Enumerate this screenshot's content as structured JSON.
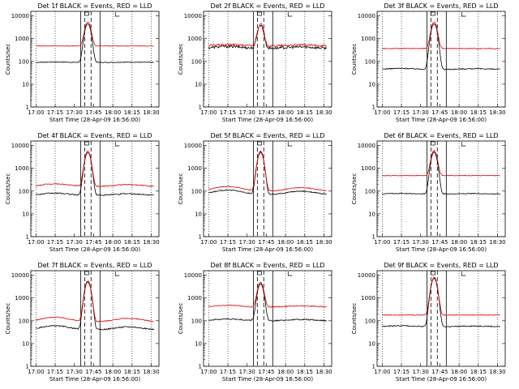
{
  "chart_data": [
    {
      "type": "line",
      "title": "Det 1f BLACK = Events, RED = LLD",
      "red_base": 480,
      "black_base": 90,
      "red_hump": 1.0,
      "black_hump": 1.05,
      "peak": 5000,
      "noise": 0.04
    },
    {
      "type": "line",
      "title": "Det 2f BLACK = Events, RED = LLD",
      "red_base": 480,
      "black_base": 380,
      "red_hump": 1.15,
      "black_hump": 1.2,
      "peak": 4000,
      "noise": 0.12
    },
    {
      "type": "line",
      "title": "Det 3f BLACK = Events, RED = LLD",
      "red_base": 370,
      "black_base": 45,
      "red_hump": 1.0,
      "black_hump": 1.1,
      "peak": 5000,
      "noise": 0.05
    },
    {
      "type": "line",
      "title": "Det 4f BLACK = Events, RED = LLD",
      "red_base": 160,
      "black_base": 65,
      "red_hump": 1.3,
      "black_hump": 1.25,
      "peak": 5500,
      "noise": 0.06
    },
    {
      "type": "line",
      "title": "Det 5f BLACK = Events, RED = LLD",
      "red_base": 100,
      "black_base": 70,
      "red_hump": 1.6,
      "black_hump": 1.6,
      "peak": 5500,
      "noise": 0.05
    },
    {
      "type": "line",
      "title": "Det 6f BLACK = Events, RED = LLD",
      "red_base": 480,
      "black_base": 75,
      "red_hump": 1.0,
      "black_hump": 1.05,
      "peak": 5500,
      "noise": 0.04
    },
    {
      "type": "line",
      "title": "Det 7f BLACK = Events, RED = LLD",
      "red_base": 90,
      "black_base": 40,
      "red_hump": 1.6,
      "black_hump": 1.5,
      "peak": 5500,
      "noise": 0.06
    },
    {
      "type": "line",
      "title": "Det 8f BLACK = Events, RED = LLD",
      "red_base": 400,
      "black_base": 100,
      "red_hump": 1.2,
      "black_hump": 1.2,
      "peak": 4500,
      "noise": 0.06
    },
    {
      "type": "line",
      "title": "Det 9f BLACK = Events, RED = LLD",
      "red_base": 180,
      "black_base": 55,
      "red_hump": 1.0,
      "black_hump": 1.1,
      "peak": 8000,
      "noise": 0.05
    }
  ],
  "x_ticks": [
    "17:00",
    "17:15",
    "17:30",
    "17:45",
    "18:00",
    "18:15",
    "18:30"
  ],
  "y_ticks": [
    "1",
    "10",
    "100",
    "1000",
    "10000"
  ],
  "xlabel": "Start Time (28-Apr-09 16:56:00)",
  "ylabel": "Counts/sec",
  "colors": {
    "events": "#000000",
    "lld": "#e00000"
  }
}
